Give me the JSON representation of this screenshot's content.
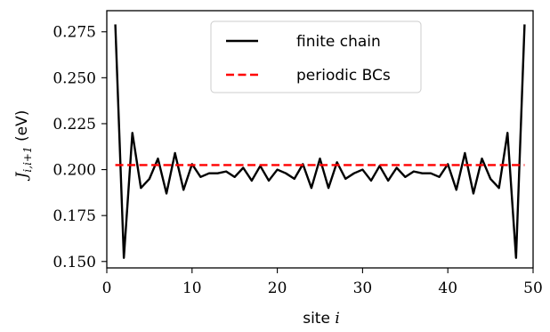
{
  "chart_data": {
    "type": "line",
    "xlabel": "site i",
    "ylabel": "J_{i,i+1} (eV)",
    "xlim": [
      0,
      50
    ],
    "ylim": [
      0.1465,
      0.2865
    ],
    "x_ticks": [
      0,
      10,
      20,
      30,
      40,
      50
    ],
    "x_tick_labels": [
      "0",
      "10",
      "20",
      "30",
      "40",
      "50"
    ],
    "y_ticks": [
      0.15,
      0.175,
      0.2,
      0.225,
      0.25,
      0.275
    ],
    "y_tick_labels": [
      "0.150",
      "0.175",
      "0.200",
      "0.225",
      "0.250",
      "0.275"
    ],
    "grid": false,
    "legend_position": "top-center",
    "series": [
      {
        "name": "finite chain",
        "color": "#000000",
        "style": "solid",
        "x": [
          1,
          2,
          3,
          4,
          5,
          6,
          7,
          8,
          9,
          10,
          11,
          12,
          13,
          14,
          15,
          16,
          17,
          18,
          19,
          20,
          21,
          22,
          23,
          24,
          25,
          26,
          27,
          28,
          29,
          30,
          31,
          32,
          33,
          34,
          35,
          36,
          37,
          38,
          39,
          40,
          41,
          42,
          43,
          44,
          45,
          46,
          47,
          48,
          49
        ],
        "y": [
          0.279,
          0.152,
          0.22,
          0.19,
          0.195,
          0.206,
          0.187,
          0.209,
          0.189,
          0.203,
          0.196,
          0.198,
          0.198,
          0.199,
          0.196,
          0.201,
          0.194,
          0.202,
          0.194,
          0.2,
          0.198,
          0.195,
          0.203,
          0.19,
          0.206,
          0.19,
          0.204,
          0.195,
          0.198,
          0.2,
          0.194,
          0.202,
          0.194,
          0.201,
          0.196,
          0.199,
          0.198,
          0.198,
          0.196,
          0.203,
          0.189,
          0.209,
          0.187,
          0.206,
          0.195,
          0.19,
          0.22,
          0.152,
          0.279
        ]
      },
      {
        "name": "periodic BCs",
        "color": "#ff0000",
        "style": "dashed",
        "x": [
          1,
          49
        ],
        "y": [
          0.2025,
          0.2025
        ]
      }
    ]
  }
}
